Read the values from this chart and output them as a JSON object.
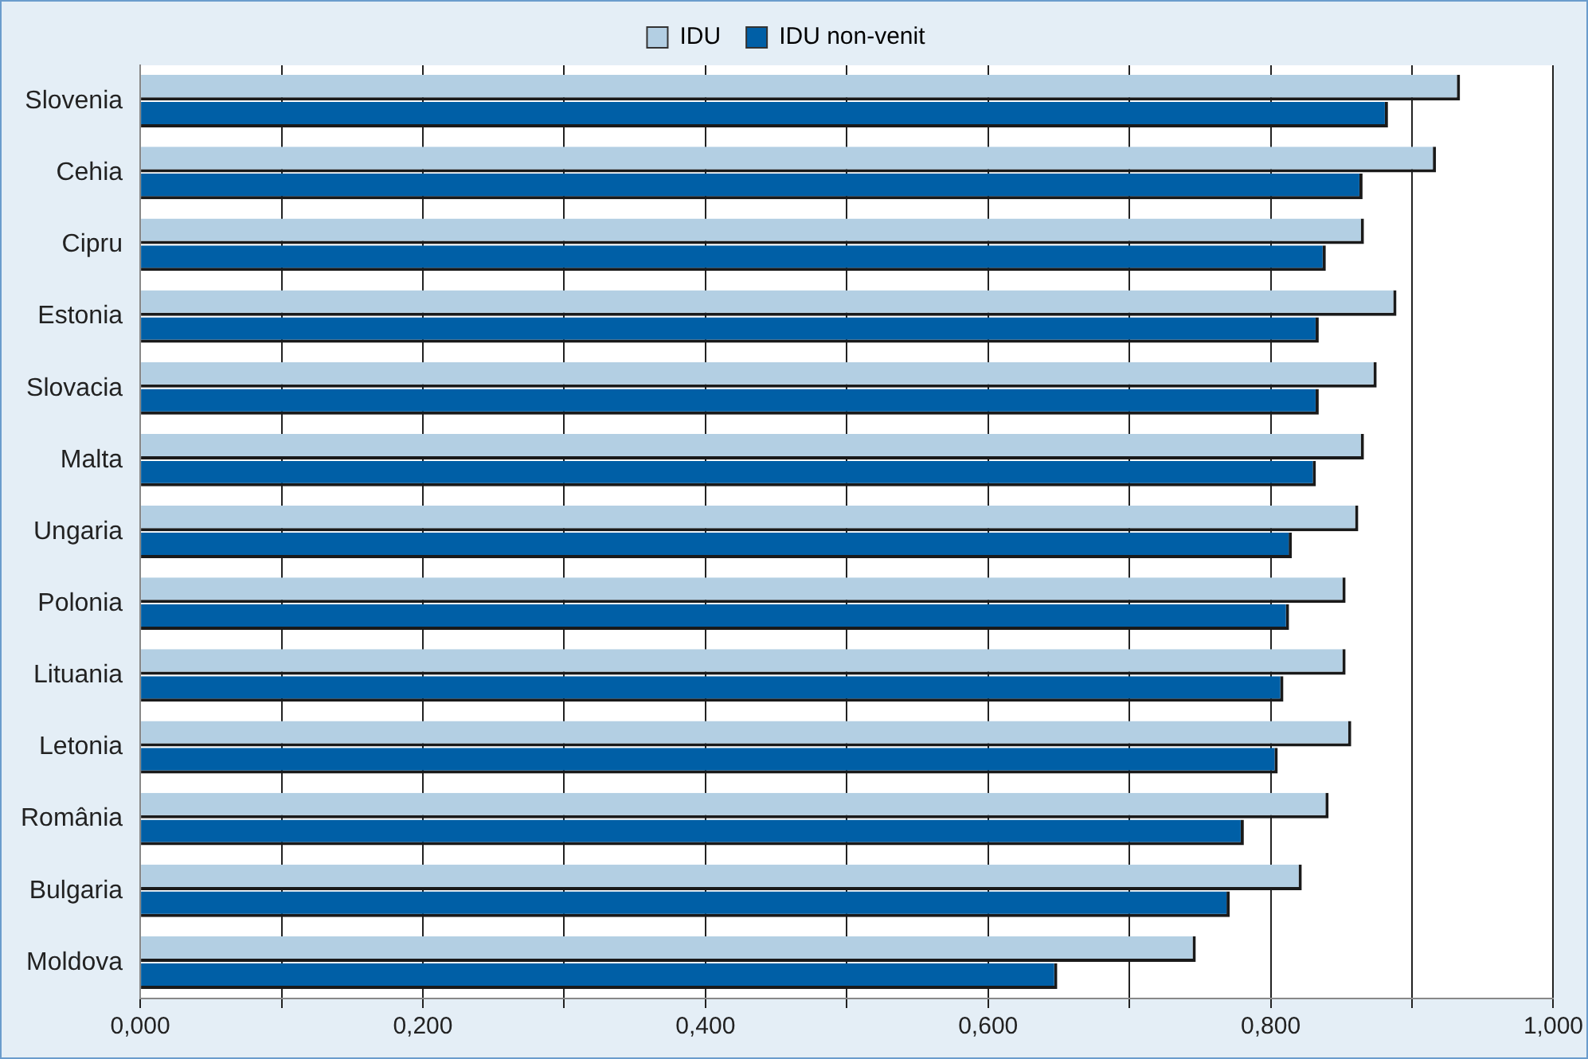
{
  "chart_data": {
    "type": "bar",
    "orientation": "horizontal",
    "categories": [
      "Slovenia",
      "Cehia",
      "Cipru",
      "Estonia",
      "Slovacia",
      "Malta",
      "Ungaria",
      "Polonia",
      "Lituania",
      "Letonia",
      "România",
      "Bulgaria",
      "Moldova"
    ],
    "series": [
      {
        "name": "IDU",
        "color": "#b3cfe3",
        "values": [
          0.934,
          0.917,
          0.866,
          0.889,
          0.875,
          0.866,
          0.862,
          0.853,
          0.853,
          0.857,
          0.841,
          0.822,
          0.747
        ]
      },
      {
        "name": "IDU non-venit",
        "color": "#005fa6",
        "values": [
          0.883,
          0.865,
          0.839,
          0.834,
          0.834,
          0.832,
          0.815,
          0.813,
          0.809,
          0.805,
          0.781,
          0.771,
          0.649
        ]
      }
    ],
    "xlim": [
      0,
      1
    ],
    "xticks": [
      {
        "value": 0,
        "label": "0,000"
      },
      {
        "value": 0.1,
        "label": null
      },
      {
        "value": 0.2,
        "label": "0,200"
      },
      {
        "value": 0.3,
        "label": null
      },
      {
        "value": 0.4,
        "label": "0,400"
      },
      {
        "value": 0.5,
        "label": null
      },
      {
        "value": 0.6,
        "label": "0,600"
      },
      {
        "value": 0.7,
        "label": null
      },
      {
        "value": 0.8,
        "label": "0,800"
      },
      {
        "value": 0.9,
        "label": null
      },
      {
        "value": 1,
        "label": "1,000"
      }
    ],
    "grid": "x",
    "legend": "top"
  }
}
